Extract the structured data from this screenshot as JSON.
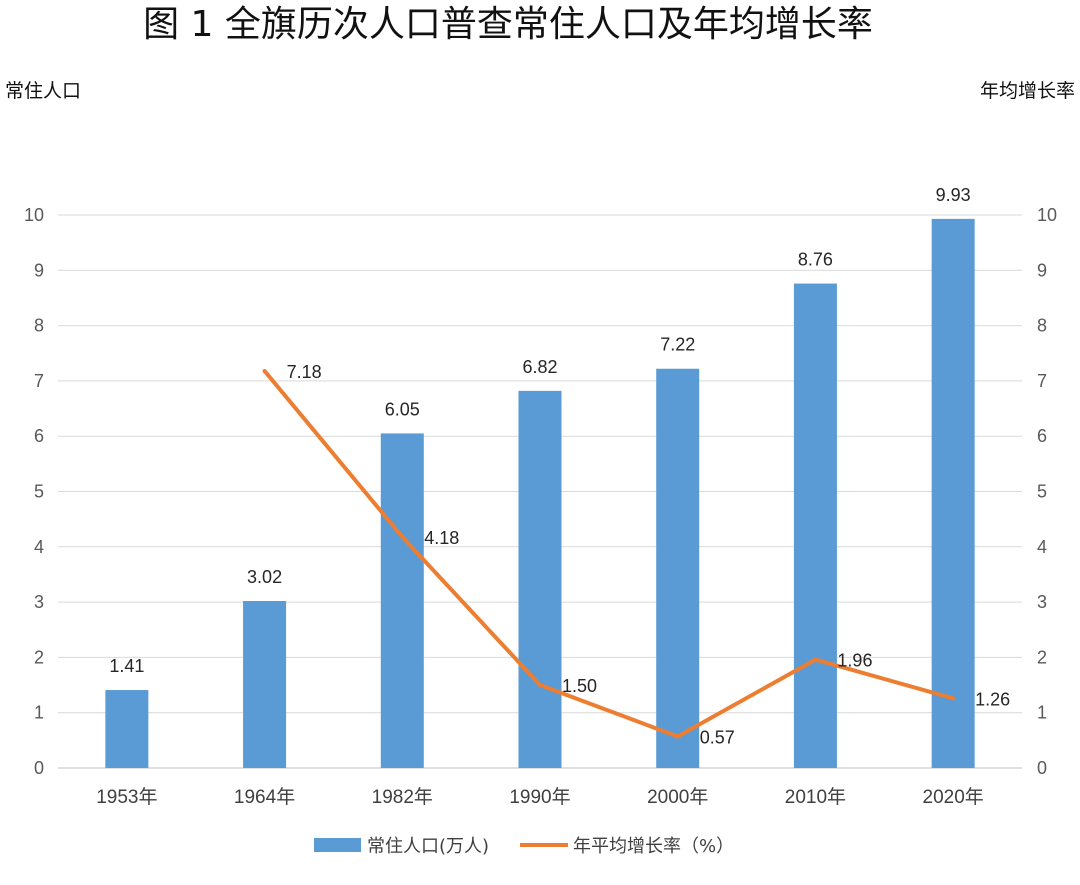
{
  "chart_data": {
    "type": "bar",
    "title": "图 1 全旗历次人口普查常住人口及年均增长率",
    "left_axis_title": "常住人口",
    "right_axis_title": "年均增长率",
    "categories": [
      "1953年",
      "1964年",
      "1982年",
      "1990年",
      "2000年",
      "2010年",
      "2020年"
    ],
    "series": [
      {
        "name": "常住人口(万人)",
        "type": "bar",
        "axis": "left",
        "values": [
          1.41,
          3.02,
          6.05,
          6.82,
          7.22,
          8.76,
          9.93
        ],
        "labels": [
          "1.41",
          "3.02",
          "6.05",
          "6.82",
          "7.22",
          "8.76",
          "9.93"
        ]
      },
      {
        "name": "年平均增长率（%）",
        "type": "line",
        "axis": "right",
        "values": [
          null,
          7.18,
          4.18,
          1.5,
          0.57,
          1.96,
          1.26
        ],
        "labels": [
          null,
          "7.18",
          "4.18",
          "1.50",
          "0.57",
          "1.96",
          "1.26"
        ]
      }
    ],
    "ylim": [
      0,
      10
    ],
    "y2lim": [
      0,
      10
    ],
    "yticks": [
      "0",
      "1",
      "2",
      "3",
      "4",
      "5",
      "6",
      "7",
      "8",
      "9",
      "10"
    ],
    "grid": true,
    "legend_position": "bottom",
    "colors": {
      "bar": "#5B9BD5",
      "line": "#ED7D31",
      "grid": "#D9D9D9"
    }
  }
}
